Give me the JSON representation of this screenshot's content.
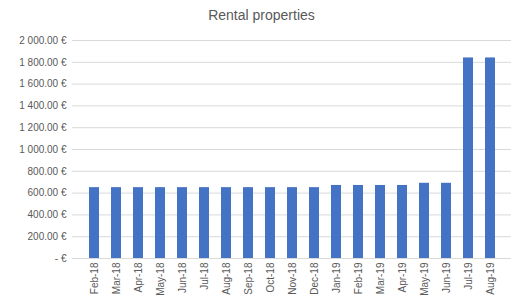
{
  "chart_data": {
    "type": "bar",
    "title": "Rental properties",
    "categories": [
      "Feb-18",
      "Mar-18",
      "Apr-18",
      "May-18",
      "Jun-18",
      "Jul-18",
      "Aug-18",
      "Sep-18",
      "Oct-18",
      "Nov-18",
      "Dec-18",
      "Jan-19",
      "Feb-19",
      "Mar-19",
      "Apr-19",
      "May-19",
      "Jun-19",
      "Jul-19",
      "Aug-19"
    ],
    "values": [
      650,
      650,
      650,
      650,
      650,
      650,
      650,
      650,
      650,
      650,
      650,
      670,
      670,
      670,
      670,
      690,
      690,
      1840,
      1840
    ],
    "color": "#4472c4",
    "ylim": [
      0,
      2000
    ],
    "yticks": [
      {
        "value": 0,
        "label": "- €"
      },
      {
        "value": 200,
        "label": "200.00 €"
      },
      {
        "value": 400,
        "label": "400.00 €"
      },
      {
        "value": 600,
        "label": "600.00 €"
      },
      {
        "value": 800,
        "label": "800.00 €"
      },
      {
        "value": 1000,
        "label": "1 000.00 €"
      },
      {
        "value": 1200,
        "label": "1 200.00 €"
      },
      {
        "value": 1400,
        "label": "1 400.00 €"
      },
      {
        "value": 1600,
        "label": "1 600.00 €"
      },
      {
        "value": 1800,
        "label": "1 800.00 €"
      },
      {
        "value": 2000,
        "label": "2 000.00 €"
      }
    ],
    "grid": true
  }
}
